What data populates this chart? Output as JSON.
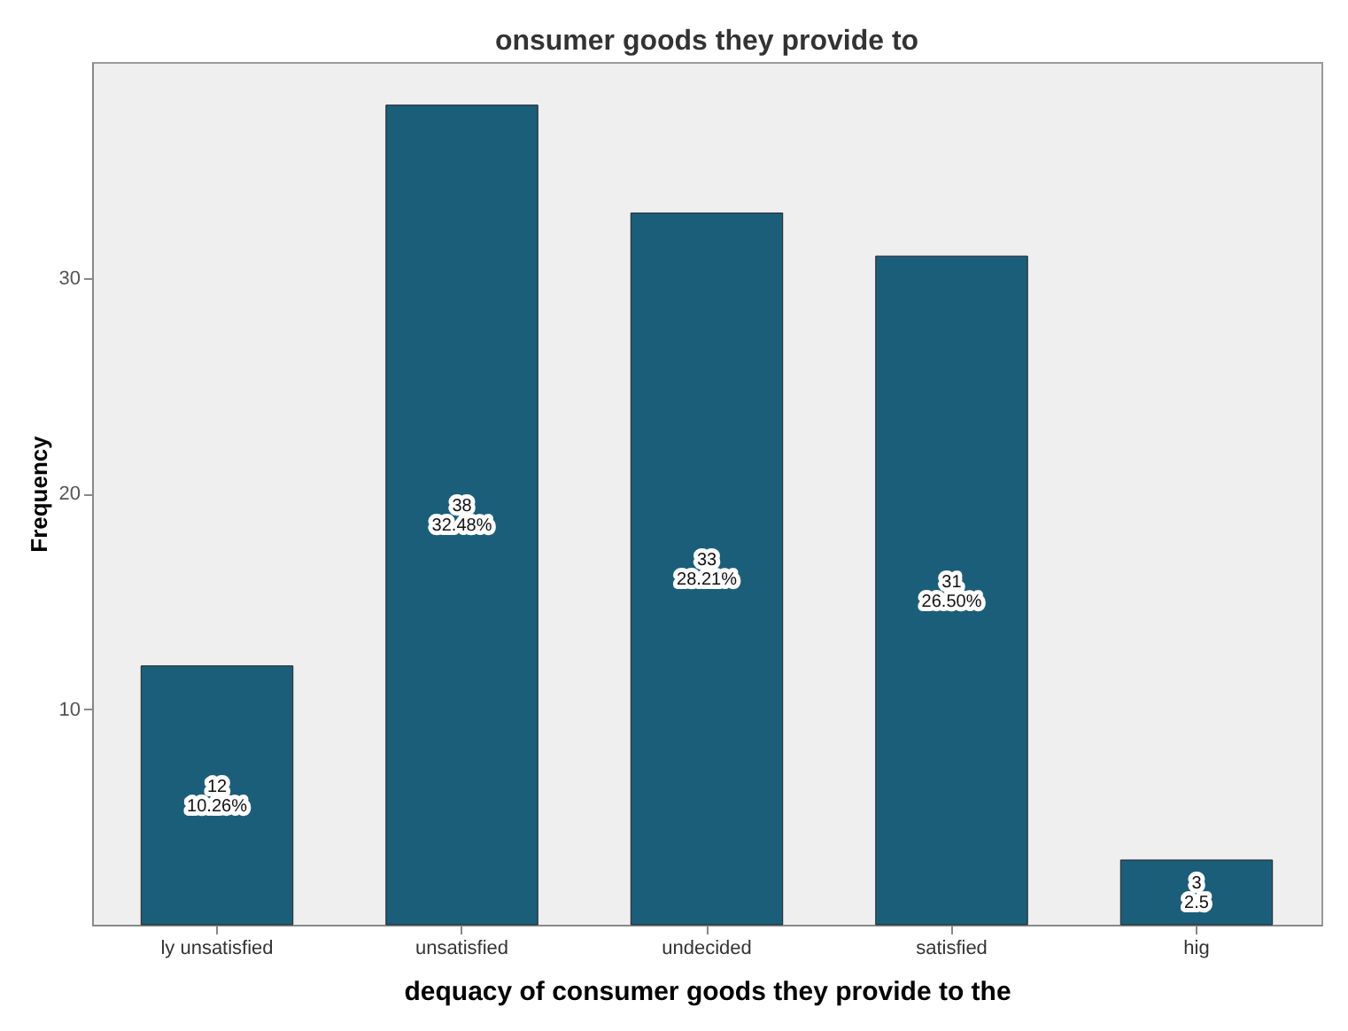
{
  "chart_data": {
    "type": "bar",
    "title": "onsumer goods they provide to",
    "xlabel": "dequacy of consumer goods they provide to the",
    "ylabel": "Frequency",
    "categories": [
      "ly unsatisfied",
      "unsatisfied",
      "undecided",
      "satisfied",
      "hig"
    ],
    "values": [
      12,
      38,
      33,
      31,
      3
    ],
    "value_labels": [
      "12\n10.26%",
      "38\n32.48%",
      "33\n28.21%",
      "31\n26.50%",
      "3\n2.5"
    ],
    "color": "#1b5e7a",
    "ylim": [
      0,
      40
    ],
    "yticks": [
      10,
      20,
      30
    ],
    "grid": false
  }
}
